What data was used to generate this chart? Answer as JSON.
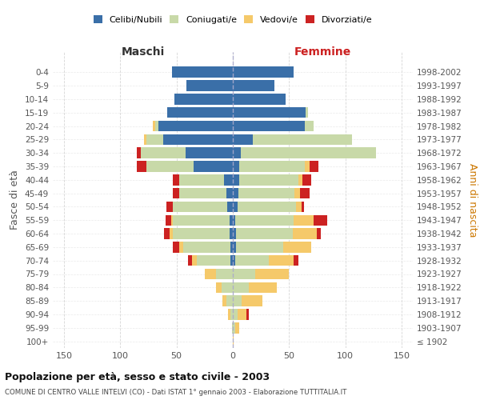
{
  "age_groups": [
    "100+",
    "95-99",
    "90-94",
    "85-89",
    "80-84",
    "75-79",
    "70-74",
    "65-69",
    "60-64",
    "55-59",
    "50-54",
    "45-49",
    "40-44",
    "35-39",
    "30-34",
    "25-29",
    "20-24",
    "15-19",
    "10-14",
    "5-9",
    "0-4"
  ],
  "birth_years": [
    "≤ 1902",
    "1903-1907",
    "1908-1912",
    "1913-1917",
    "1918-1922",
    "1923-1927",
    "1928-1932",
    "1933-1937",
    "1938-1942",
    "1943-1947",
    "1948-1952",
    "1953-1957",
    "1958-1962",
    "1963-1967",
    "1968-1972",
    "1973-1977",
    "1978-1982",
    "1983-1987",
    "1988-1992",
    "1993-1997",
    "1998-2002"
  ],
  "male_celibi": [
    0,
    0,
    0,
    0,
    0,
    0,
    2,
    2,
    3,
    3,
    5,
    6,
    8,
    35,
    42,
    62,
    66,
    58,
    52,
    41,
    54
  ],
  "male_coniugati": [
    0,
    1,
    2,
    6,
    10,
    15,
    30,
    42,
    50,
    50,
    48,
    42,
    40,
    42,
    40,
    15,
    3,
    0,
    0,
    0,
    0
  ],
  "male_vedovi": [
    0,
    0,
    2,
    3,
    5,
    10,
    4,
    4,
    3,
    2,
    0,
    0,
    0,
    0,
    0,
    2,
    2,
    0,
    0,
    0,
    0
  ],
  "male_divorziati": [
    0,
    0,
    0,
    0,
    0,
    0,
    4,
    5,
    5,
    5,
    6,
    5,
    5,
    8,
    3,
    0,
    0,
    0,
    0,
    0,
    0
  ],
  "female_nubili": [
    0,
    0,
    0,
    0,
    0,
    0,
    2,
    3,
    3,
    2,
    4,
    5,
    6,
    6,
    7,
    18,
    64,
    65,
    47,
    37,
    54
  ],
  "female_coniugate": [
    0,
    2,
    4,
    8,
    14,
    20,
    30,
    42,
    50,
    52,
    52,
    50,
    52,
    58,
    120,
    88,
    8,
    2,
    0,
    0,
    0
  ],
  "female_vedove": [
    1,
    4,
    8,
    18,
    25,
    30,
    22,
    25,
    22,
    18,
    5,
    5,
    4,
    4,
    0,
    0,
    0,
    0,
    0,
    0,
    0
  ],
  "female_divorziate": [
    0,
    0,
    2,
    0,
    0,
    0,
    4,
    0,
    3,
    12,
    2,
    8,
    8,
    8,
    0,
    0,
    0,
    0,
    0,
    0,
    0
  ],
  "color_celibi": "#3a6fa8",
  "color_coniugati": "#c8d9a8",
  "color_vedovi": "#f5c96a",
  "color_divorziati": "#cc2222",
  "xlim": 160,
  "xticks": [
    -150,
    -100,
    -50,
    0,
    50,
    100,
    150
  ],
  "title": "Popolazione per età, sesso e stato civile - 2003",
  "subtitle": "COMUNE DI CENTRO VALLE INTELVI (CO) - Dati ISTAT 1° gennaio 2003 - Elaborazione TUTTITALIA.IT",
  "label_maschi": "Maschi",
  "label_femmine": "Femmine",
  "ylabel_left": "Fasce di età",
  "ylabel_right": "Anni di nascita",
  "legend_labels": [
    "Celibi/Nubili",
    "Coniugati/e",
    "Vedovi/e",
    "Divorziati/e"
  ]
}
